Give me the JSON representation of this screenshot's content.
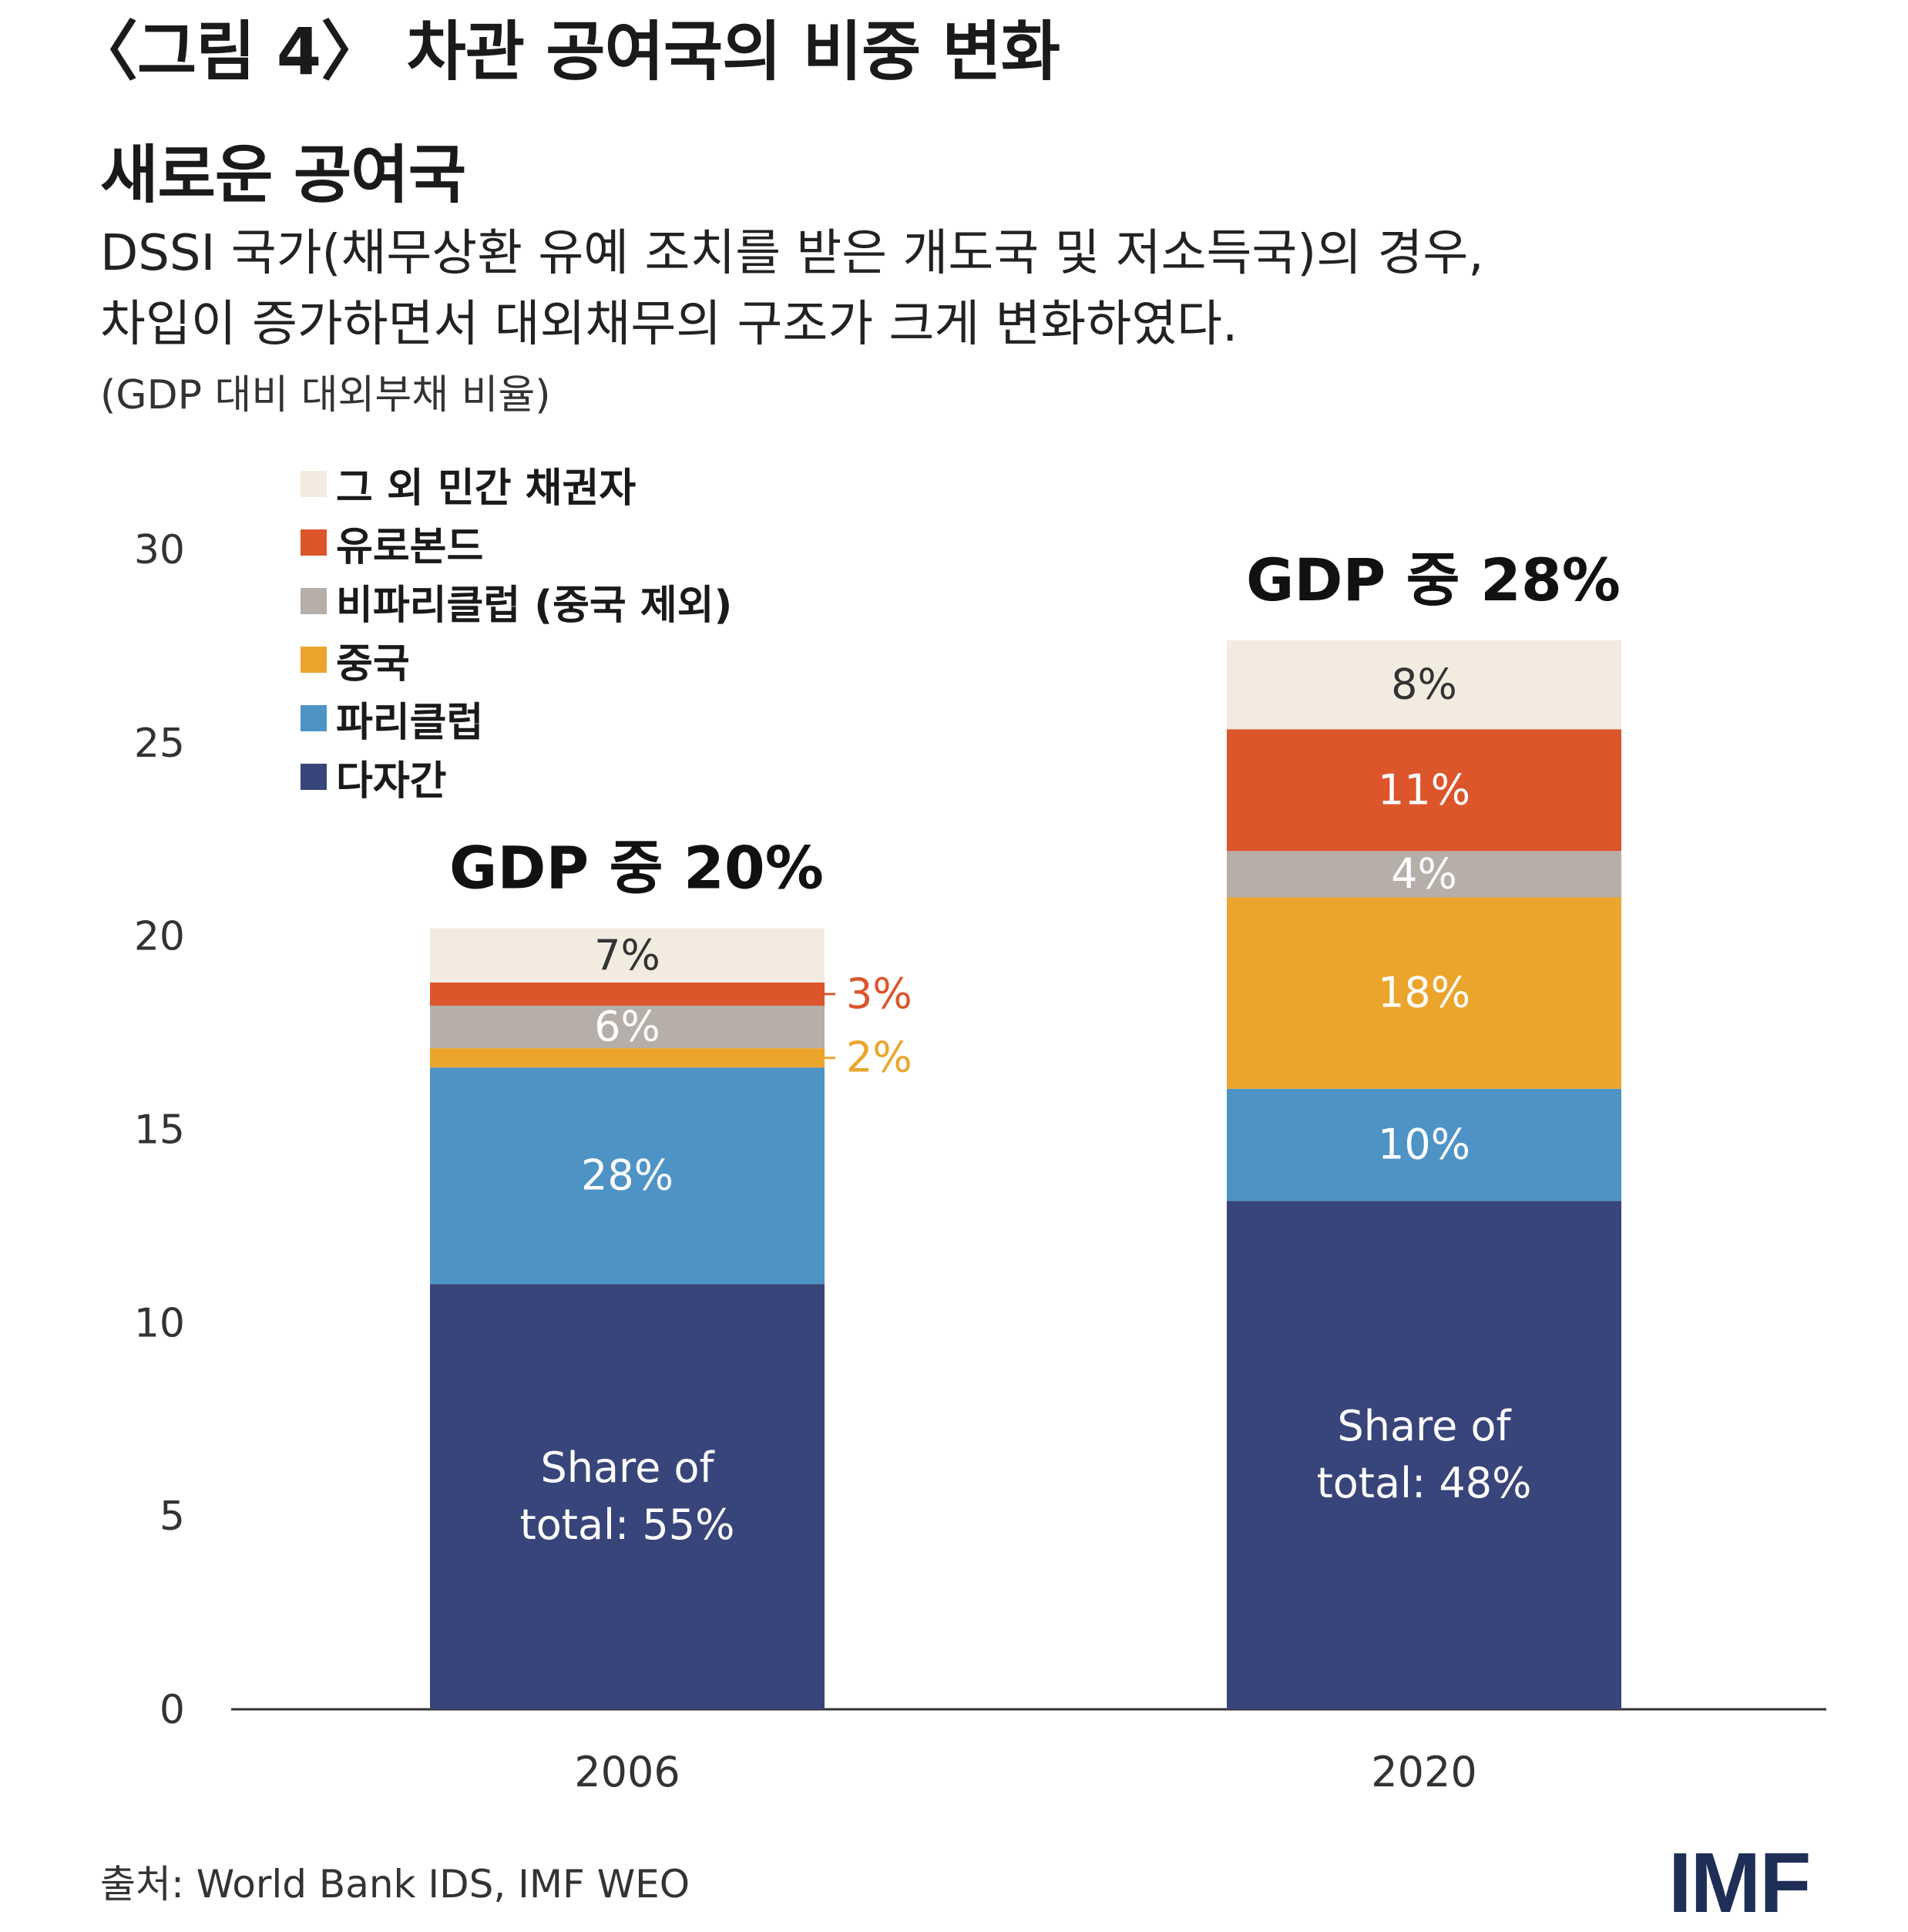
{
  "figure_label": "〈그림 4〉 차관 공여국의 비중 변화",
  "chart_title": "새로운 공여국",
  "subtitle_lines": [
    "DSSI 국가(채무상환 유예 조치를 받은 개도국 및 저소득국)의 경우,",
    "차입이 증가하면서 대외채무의 구조가 크게 변화하였다."
  ],
  "unit": "(GDP 대비 대외부채 비율)",
  "source": "출처: World Bank IDS, IMF WEO",
  "logo": "IMF",
  "colors": {
    "multilateral": "#38457a",
    "paris_club": "#4e93c6",
    "china": "#eba52c",
    "non_paris": "#b5aea9",
    "eurobond": "#dc552b",
    "other_private": "#f2ece0",
    "axis": "#333333",
    "tick_text": "#333333"
  },
  "chart_data": {
    "type": "bar",
    "stacked": true,
    "ylim": [
      0,
      30
    ],
    "yticks": [
      0,
      5,
      10,
      15,
      20,
      25,
      30
    ],
    "categories": [
      "2006",
      "2020"
    ],
    "totals": [
      20,
      28
    ],
    "total_labels": [
      "GDP 중 20%",
      "GDP 중 28%"
    ],
    "series": [
      {
        "key": "multilateral",
        "name": "다자간",
        "values": [
          11.0,
          13.15
        ],
        "labels": [
          "Share of\ntotal: 55%",
          "Share of\ntotal: 48%"
        ]
      },
      {
        "key": "paris_club",
        "name": "파리클럽",
        "values": [
          5.6,
          2.9
        ],
        "labels": [
          "28%",
          "10%"
        ]
      },
      {
        "key": "china",
        "name": "중국",
        "values": [
          0.5,
          4.95
        ],
        "labels": [
          "2%",
          "18%"
        ]
      },
      {
        "key": "non_paris",
        "name": "비파리클럽 (중국 제외)",
        "values": [
          1.1,
          1.2
        ],
        "labels": [
          "6%",
          "4%"
        ]
      },
      {
        "key": "eurobond",
        "name": "유로본드",
        "values": [
          0.6,
          3.15
        ],
        "labels": [
          "3%",
          "11%"
        ]
      },
      {
        "key": "other_private",
        "name": "그 외 민간 채권자",
        "values": [
          1.4,
          2.3
        ],
        "labels": [
          "7%",
          "8%"
        ]
      }
    ],
    "legend_order": [
      "other_private",
      "eurobond",
      "non_paris",
      "china",
      "paris_club",
      "multilateral"
    ]
  }
}
